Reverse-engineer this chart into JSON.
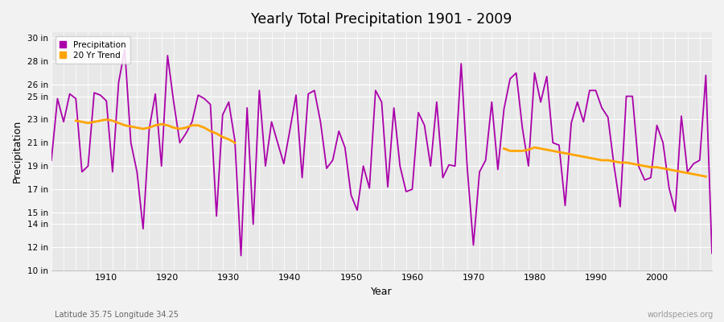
{
  "title": "Yearly Total Precipitation 1901 - 2009",
  "xlabel": "Year",
  "ylabel": "Precipitation",
  "subtitle_left": "Latitude 35.75 Longitude 34.25",
  "subtitle_right": "worldspecies.org",
  "precip_color": "#aa00aa",
  "trend_color": "#FFA500",
  "fig_bg": "#f2f2f2",
  "plot_bg": "#e8e8e8",
  "years": [
    1901,
    1902,
    1903,
    1904,
    1905,
    1906,
    1907,
    1908,
    1909,
    1910,
    1911,
    1912,
    1913,
    1914,
    1915,
    1916,
    1917,
    1918,
    1919,
    1920,
    1921,
    1922,
    1923,
    1924,
    1925,
    1926,
    1927,
    1928,
    1929,
    1930,
    1931,
    1932,
    1933,
    1934,
    1935,
    1936,
    1937,
    1938,
    1939,
    1940,
    1941,
    1942,
    1943,
    1944,
    1945,
    1946,
    1947,
    1948,
    1949,
    1950,
    1951,
    1952,
    1953,
    1954,
    1955,
    1956,
    1957,
    1958,
    1959,
    1960,
    1961,
    1962,
    1963,
    1964,
    1965,
    1966,
    1967,
    1968,
    1969,
    1970,
    1971,
    1972,
    1973,
    1974,
    1975,
    1976,
    1977,
    1978,
    1979,
    1980,
    1981,
    1982,
    1983,
    1984,
    1985,
    1986,
    1987,
    1988,
    1989,
    1990,
    1991,
    1992,
    1993,
    1994,
    1995,
    1996,
    1997,
    1998,
    1999,
    2000,
    2001,
    2002,
    2003,
    2004,
    2005,
    2006,
    2007,
    2008,
    2009
  ],
  "precip": [
    19.5,
    24.8,
    22.8,
    25.2,
    24.8,
    18.5,
    19.0,
    25.3,
    25.1,
    24.6,
    18.5,
    26.2,
    29.0,
    21.0,
    18.5,
    13.6,
    22.2,
    25.2,
    19.0,
    28.5,
    24.5,
    21.0,
    21.8,
    22.8,
    25.1,
    24.8,
    24.3,
    14.7,
    23.4,
    24.5,
    21.2,
    11.3,
    24.0,
    14.0,
    25.5,
    19.0,
    22.8,
    21.0,
    19.2,
    22.1,
    25.1,
    18.0,
    25.2,
    25.5,
    22.8,
    18.8,
    19.5,
    22.0,
    20.6,
    16.5,
    15.2,
    19.0,
    17.1,
    25.5,
    24.5,
    17.2,
    24.0,
    19.0,
    16.8,
    17.0,
    23.6,
    22.5,
    19.0,
    24.5,
    18.0,
    19.1,
    19.0,
    27.8,
    18.8,
    12.2,
    18.5,
    19.5,
    24.5,
    18.7,
    23.9,
    26.5,
    27.0,
    22.3,
    19.0,
    27.0,
    24.5,
    26.7,
    21.0,
    20.8,
    15.6,
    22.7,
    24.5,
    22.8,
    25.5,
    25.5,
    24.0,
    23.2,
    19.0,
    15.5,
    25.0,
    25.0,
    19.0,
    17.8,
    18.0,
    22.5,
    21.0,
    17.1,
    15.1,
    23.3,
    18.5,
    19.2,
    19.5,
    26.8,
    11.5
  ],
  "trend_seg1_years": [
    1905,
    1906,
    1907,
    1908,
    1909,
    1910,
    1911,
    1912,
    1913,
    1914,
    1915,
    1916,
    1917,
    1918,
    1919,
    1920,
    1921,
    1922,
    1923,
    1924,
    1925,
    1926,
    1927,
    1928,
    1929,
    1930,
    1931
  ],
  "trend_seg1_vals": [
    22.9,
    22.8,
    22.7,
    22.8,
    22.9,
    23.0,
    22.9,
    22.7,
    22.5,
    22.4,
    22.3,
    22.2,
    22.3,
    22.5,
    22.6,
    22.5,
    22.3,
    22.2,
    22.3,
    22.5,
    22.5,
    22.3,
    22.0,
    21.8,
    21.5,
    21.3,
    21.0
  ],
  "trend_seg2_years": [
    1975,
    1976,
    1977,
    1978,
    1979,
    1980,
    1981,
    1982,
    1983,
    1984,
    1985,
    1986,
    1987,
    1988,
    1989,
    1990,
    1991,
    1992,
    1993,
    1994,
    1995,
    1996,
    1997,
    1998,
    1999,
    2000,
    2001,
    2002,
    2003,
    2004,
    2005,
    2006,
    2007,
    2008
  ],
  "trend_seg2_vals": [
    20.5,
    20.3,
    20.3,
    20.3,
    20.4,
    20.6,
    20.5,
    20.4,
    20.3,
    20.2,
    20.1,
    20.0,
    19.9,
    19.8,
    19.7,
    19.6,
    19.5,
    19.5,
    19.4,
    19.3,
    19.3,
    19.2,
    19.1,
    19.0,
    18.9,
    18.9,
    18.8,
    18.7,
    18.6,
    18.5,
    18.4,
    18.3,
    18.2,
    18.1
  ],
  "ytick_positions": [
    10,
    12,
    14,
    15,
    17,
    19,
    21,
    23,
    25,
    26,
    28,
    30
  ],
  "ytick_labels": [
    "10 in",
    "12 in",
    "14 in",
    "15 in",
    "17 in",
    "19 in",
    "21 in",
    "23 in",
    "25 in",
    "26 in",
    "28 in",
    "30 in"
  ],
  "xtick_positions": [
    1910,
    1920,
    1930,
    1940,
    1950,
    1960,
    1970,
    1980,
    1990,
    2000
  ],
  "ylim_min": 10,
  "ylim_max": 30.5,
  "xlim_min": 1901,
  "xlim_max": 2009
}
